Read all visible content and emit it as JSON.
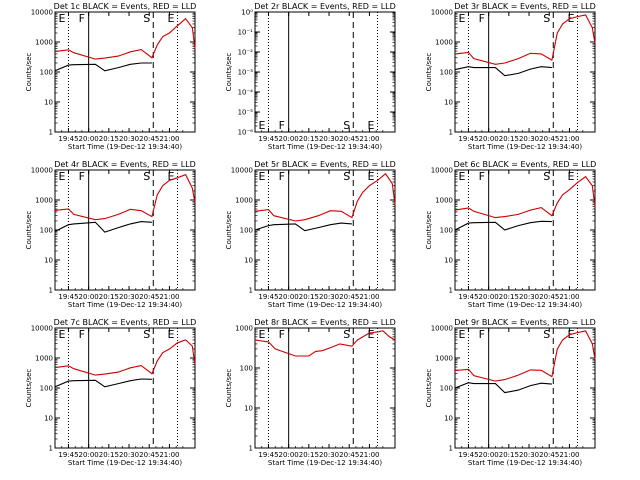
{
  "chart_data": [
    {
      "type": "line",
      "title": "Det 1c BLACK = Events, RED = LLD",
      "xlabel": "Start Time (19-Dec-12 19:34:40)",
      "ylabel": "Counts/sec",
      "yscale": "log",
      "ylim": [
        1,
        10000
      ],
      "ytick_labels": [
        "1",
        "10",
        "100",
        "1000",
        "10000"
      ],
      "xlim": [
        "19:35",
        "21:19"
      ],
      "xtick_labels": [
        "19:45",
        "20:00",
        "20:15",
        "20:30",
        "20:45",
        "21:00"
      ],
      "markers": [
        {
          "label": "E",
          "time": "19:45",
          "style": "dotted"
        },
        {
          "label": "F",
          "time": "20:00",
          "style": "solid"
        },
        {
          "label": "S",
          "time": "20:48",
          "style": "dashed"
        },
        {
          "label": "E",
          "time": "21:06",
          "style": "dotted"
        }
      ],
      "series": [
        {
          "color": "#000000",
          "x": [
            "19:35",
            "19:45",
            "19:49",
            "20:05",
            "20:12",
            "20:22",
            "20:31",
            "20:39",
            "20:47",
            "20:51",
            "20:55",
            "21:00"
          ],
          "y": [
            110,
            170,
            175,
            180,
            110,
            140,
            180,
            200,
            200,
            null,
            null,
            null
          ]
        },
        {
          "color": "#cc0000",
          "x": [
            "19:35",
            "19:45",
            "19:49",
            "20:05",
            "20:12",
            "20:22",
            "20:31",
            "20:39",
            "20:47",
            "20:51",
            "20:55",
            "21:00",
            "21:06",
            "21:12",
            "21:17",
            "21:19"
          ],
          "y": [
            480,
            550,
            440,
            270,
            290,
            340,
            470,
            560,
            300,
            800,
            1500,
            2000,
            3500,
            6000,
            3000,
            600
          ]
        }
      ]
    },
    {
      "type": "line",
      "title": "Det 2r BLACK = Events, RED = LLD",
      "xlabel": "Start Time (19-Dec-12 19:34:40)",
      "ylabel": "Counts/sec",
      "yscale": "log",
      "ylim": [
        1e-06,
        1
      ],
      "ytick_labels": [
        "10⁻⁶",
        "10⁻⁵",
        "10⁻⁴",
        "10⁻³",
        "10⁻²",
        "10⁻¹",
        "10⁰"
      ],
      "xlim": [
        "19:35",
        "21:19"
      ],
      "xtick_labels": [
        "19:45",
        "20:00",
        "20:15",
        "20:30",
        "20:45",
        "21:00"
      ],
      "markers": [
        {
          "label": "E",
          "time": "19:45",
          "style": "dotted"
        },
        {
          "label": "F",
          "time": "20:00",
          "style": "solid"
        },
        {
          "label": "S",
          "time": "20:48",
          "style": "dashed"
        },
        {
          "label": "E",
          "time": "21:06",
          "style": "dotted"
        }
      ],
      "series": []
    },
    {
      "type": "line",
      "title": "Det 3r BLACK = Events, RED = LLD",
      "xlabel": "Start Time (19-Dec-12 19:34:40)",
      "ylabel": "Counts/sec",
      "yscale": "log",
      "ylim": [
        1,
        10000
      ],
      "ytick_labels": [
        "1",
        "10",
        "100",
        "1000",
        "10000"
      ],
      "xlim": [
        "19:35",
        "21:19"
      ],
      "xtick_labels": [
        "19:45",
        "20:00",
        "20:15",
        "20:30",
        "20:45",
        "21:00"
      ],
      "markers": [
        {
          "label": "E",
          "time": "19:45",
          "style": "dotted"
        },
        {
          "label": "F",
          "time": "20:00",
          "style": "solid"
        },
        {
          "label": "S",
          "time": "20:48",
          "style": "dashed"
        },
        {
          "label": "E",
          "time": "21:06",
          "style": "dotted"
        }
      ],
      "series": [
        {
          "color": "#000000",
          "x": [
            "19:35",
            "19:45",
            "19:49",
            "20:05",
            "20:12",
            "20:22",
            "20:31",
            "20:39",
            "20:47",
            "20:51",
            "20:55",
            "21:00"
          ],
          "y": [
            120,
            150,
            140,
            140,
            75,
            90,
            125,
            150,
            140,
            null,
            null,
            null
          ]
        },
        {
          "color": "#cc0000",
          "x": [
            "19:35",
            "19:45",
            "19:49",
            "20:05",
            "20:12",
            "20:22",
            "20:31",
            "20:39",
            "20:47",
            "20:51",
            "20:55",
            "21:00",
            "21:06",
            "21:12",
            "21:17",
            "21:19"
          ],
          "y": [
            400,
            450,
            280,
            180,
            200,
            280,
            420,
            400,
            250,
            2000,
            4000,
            6000,
            7000,
            8000,
            3000,
            900
          ]
        }
      ]
    },
    {
      "type": "line",
      "title": "Det 4r BLACK = Events, RED = LLD",
      "xlabel": "Start Time (19-Dec-12 19:34:40)",
      "ylabel": "Counts/sec",
      "yscale": "log",
      "ylim": [
        1,
        10000
      ],
      "ytick_labels": [
        "1",
        "10",
        "100",
        "1000",
        "10000"
      ],
      "xlim": [
        "19:35",
        "21:19"
      ],
      "xtick_labels": [
        "19:45",
        "20:00",
        "20:15",
        "20:30",
        "20:45",
        "21:00"
      ],
      "markers": [
        {
          "label": "E",
          "time": "19:45",
          "style": "dotted"
        },
        {
          "label": "F",
          "time": "20:00",
          "style": "solid"
        },
        {
          "label": "S",
          "time": "20:48",
          "style": "dashed"
        },
        {
          "label": "E",
          "time": "21:06",
          "style": "dotted"
        }
      ],
      "series": [
        {
          "color": "#000000",
          "x": [
            "19:35",
            "19:45",
            "19:49",
            "20:05",
            "20:12",
            "20:22",
            "20:31",
            "20:39",
            "20:47",
            "20:51",
            "20:55",
            "21:00"
          ],
          "y": [
            90,
            150,
            160,
            180,
            85,
            120,
            160,
            190,
            180,
            null,
            null,
            null
          ]
        },
        {
          "color": "#cc0000",
          "x": [
            "19:35",
            "19:45",
            "19:49",
            "20:05",
            "20:12",
            "20:22",
            "20:31",
            "20:39",
            "20:47",
            "20:51",
            "20:55",
            "21:00",
            "21:06",
            "21:12",
            "21:17",
            "21:19"
          ],
          "y": [
            450,
            500,
            330,
            220,
            240,
            330,
            490,
            440,
            280,
            1500,
            3000,
            4500,
            5500,
            7000,
            2500,
            800
          ]
        }
      ]
    },
    {
      "type": "line",
      "title": "Det 5r BLACK = Events, RED = LLD",
      "xlabel": "Start Time (19-Dec-12 19:34:40)",
      "ylabel": "Counts/sec",
      "yscale": "log",
      "ylim": [
        1,
        10000
      ],
      "ytick_labels": [
        "1",
        "10",
        "100",
        "1000",
        "10000"
      ],
      "xlim": [
        "19:35",
        "21:19"
      ],
      "xtick_labels": [
        "19:45",
        "20:00",
        "20:15",
        "20:30",
        "20:45",
        "21:00"
      ],
      "markers": [
        {
          "label": "E",
          "time": "19:45",
          "style": "dotted"
        },
        {
          "label": "F",
          "time": "20:00",
          "style": "solid"
        },
        {
          "label": "S",
          "time": "20:48",
          "style": "dashed"
        },
        {
          "label": "E",
          "time": "21:06",
          "style": "dotted"
        }
      ],
      "series": [
        {
          "color": "#000000",
          "x": [
            "19:35",
            "19:45",
            "19:49",
            "20:05",
            "20:12",
            "20:22",
            "20:31",
            "20:39",
            "20:47",
            "20:51",
            "20:55",
            "21:00"
          ],
          "y": [
            100,
            140,
            150,
            160,
            95,
            120,
            150,
            170,
            160,
            null,
            null,
            null
          ]
        },
        {
          "color": "#cc0000",
          "x": [
            "19:35",
            "19:45",
            "19:49",
            "20:05",
            "20:12",
            "20:22",
            "20:31",
            "20:39",
            "20:47",
            "20:51",
            "20:55",
            "21:00",
            "21:06",
            "21:12",
            "21:17",
            "21:19"
          ],
          "y": [
            420,
            480,
            300,
            200,
            220,
            300,
            440,
            420,
            260,
            900,
            1800,
            3000,
            4500,
            7500,
            3500,
            700
          ]
        }
      ]
    },
    {
      "type": "line",
      "title": "Det 6c BLACK = Events, RED = LLD",
      "xlabel": "Start Time (19-Dec-12 19:34:40)",
      "ylabel": "Counts/sec",
      "yscale": "log",
      "ylim": [
        1,
        10000
      ],
      "ytick_labels": [
        "1",
        "10",
        "100",
        "1000",
        "10000"
      ],
      "xlim": [
        "19:35",
        "21:19"
      ],
      "xtick_labels": [
        "19:45",
        "20:00",
        "20:15",
        "20:30",
        "20:45",
        "21:00"
      ],
      "markers": [
        {
          "label": "E",
          "time": "19:45",
          "style": "dotted"
        },
        {
          "label": "F",
          "time": "20:00",
          "style": "solid"
        },
        {
          "label": "S",
          "time": "20:48",
          "style": "dashed"
        },
        {
          "label": "E",
          "time": "21:06",
          "style": "dotted"
        }
      ],
      "series": [
        {
          "color": "#000000",
          "x": [
            "19:35",
            "19:45",
            "19:49",
            "20:05",
            "20:12",
            "20:22",
            "20:31",
            "20:39",
            "20:47",
            "20:51",
            "20:55",
            "21:00"
          ],
          "y": [
            100,
            170,
            175,
            180,
            100,
            140,
            175,
            195,
            190,
            null,
            null,
            null
          ]
        },
        {
          "color": "#cc0000",
          "x": [
            "19:35",
            "19:45",
            "19:49",
            "20:05",
            "20:12",
            "20:22",
            "20:31",
            "20:39",
            "20:47",
            "20:51",
            "20:55",
            "21:00",
            "21:06",
            "21:12",
            "21:17",
            "21:19"
          ],
          "y": [
            460,
            540,
            420,
            260,
            280,
            330,
            460,
            560,
            300,
            800,
            1500,
            2200,
            3800,
            6000,
            3000,
            600
          ]
        }
      ]
    },
    {
      "type": "line",
      "title": "Det 7c BLACK = Events, RED = LLD",
      "xlabel": "Start Time (19-Dec-12 19:34:40)",
      "ylabel": "Counts/sec",
      "yscale": "log",
      "ylim": [
        1,
        10000
      ],
      "ytick_labels": [
        "1",
        "10",
        "100",
        "1000",
        "10000"
      ],
      "xlim": [
        "19:35",
        "21:19"
      ],
      "xtick_labels": [
        "19:45",
        "20:00",
        "20:15",
        "20:30",
        "20:45",
        "21:00"
      ],
      "markers": [
        {
          "label": "E",
          "time": "19:45",
          "style": "dotted"
        },
        {
          "label": "F",
          "time": "20:00",
          "style": "solid"
        },
        {
          "label": "S",
          "time": "20:48",
          "style": "dashed"
        },
        {
          "label": "E",
          "time": "21:06",
          "style": "dotted"
        }
      ],
      "series": [
        {
          "color": "#000000",
          "x": [
            "19:35",
            "19:45",
            "19:49",
            "20:05",
            "20:12",
            "20:22",
            "20:31",
            "20:39",
            "20:47",
            "20:51",
            "20:55",
            "21:00"
          ],
          "y": [
            110,
            170,
            175,
            180,
            110,
            140,
            175,
            200,
            195,
            null,
            null,
            null
          ]
        },
        {
          "color": "#cc0000",
          "x": [
            "19:35",
            "19:45",
            "19:49",
            "20:05",
            "20:12",
            "20:22",
            "20:31",
            "20:39",
            "20:47",
            "20:51",
            "20:55",
            "21:00",
            "21:06",
            "21:12",
            "21:17",
            "21:19"
          ],
          "y": [
            480,
            550,
            440,
            270,
            290,
            340,
            470,
            560,
            300,
            800,
            1500,
            2000,
            3200,
            4000,
            2500,
            600
          ]
        }
      ]
    },
    {
      "type": "line",
      "title": "Det 8r BLACK = Events, RED = LLD",
      "xlabel": "Start Time (19-Dec-12 19:34:40)",
      "ylabel": "Counts/sec",
      "yscale": "log",
      "ylim": [
        1,
        1000
      ],
      "ytick_labels": [
        "1",
        "10",
        "100",
        "1000"
      ],
      "xlim": [
        "19:35",
        "21:19"
      ],
      "xtick_labels": [
        "19:45",
        "20:00",
        "20:15",
        "20:30",
        "20:45",
        "21:00"
      ],
      "markers": [
        {
          "label": "E",
          "time": "19:45",
          "style": "dotted"
        },
        {
          "label": "F",
          "time": "20:00",
          "style": "solid"
        },
        {
          "label": "S",
          "time": "20:48",
          "style": "dashed"
        },
        {
          "label": "E",
          "time": "21:06",
          "style": "dotted"
        }
      ],
      "series": [
        {
          "color": "#cc0000",
          "x": [
            "19:35",
            "19:45",
            "19:50",
            "20:05",
            "20:15",
            "20:20",
            "20:25",
            "20:32",
            "20:38",
            "20:47",
            "20:51",
            "20:55",
            "21:00",
            "21:06",
            "21:10",
            "21:15",
            "21:19"
          ],
          "y": [
            500,
            450,
            300,
            200,
            200,
            260,
            270,
            330,
            400,
            350,
            500,
            600,
            750,
            800,
            850,
            600,
            500
          ]
        }
      ]
    },
    {
      "type": "line",
      "title": "Det 9r BLACK = Events, RED = LLD",
      "xlabel": "Start Time (19-Dec-12 19:34:40)",
      "ylabel": "Counts/sec",
      "yscale": "log",
      "ylim": [
        1,
        10000
      ],
      "ytick_labels": [
        "1",
        "10",
        "100",
        "1000",
        "10000"
      ],
      "xlim": [
        "19:35",
        "21:19"
      ],
      "xtick_labels": [
        "19:45",
        "20:00",
        "20:15",
        "20:30",
        "20:45",
        "21:00"
      ],
      "markers": [
        {
          "label": "E",
          "time": "19:45",
          "style": "dotted"
        },
        {
          "label": "F",
          "time": "20:00",
          "style": "solid"
        },
        {
          "label": "S",
          "time": "20:48",
          "style": "dashed"
        },
        {
          "label": "E",
          "time": "21:06",
          "style": "dotted"
        }
      ],
      "series": [
        {
          "color": "#000000",
          "x": [
            "19:35",
            "19:45",
            "19:49",
            "20:05",
            "20:12",
            "20:22",
            "20:31",
            "20:39",
            "20:47",
            "20:51",
            "20:55",
            "21:00"
          ],
          "y": [
            100,
            150,
            140,
            140,
            70,
            85,
            120,
            145,
            135,
            null,
            null,
            null
          ]
        },
        {
          "color": "#cc0000",
          "x": [
            "19:35",
            "19:45",
            "19:49",
            "20:05",
            "20:12",
            "20:22",
            "20:31",
            "20:39",
            "20:47",
            "20:51",
            "20:55",
            "21:00",
            "21:06",
            "21:12",
            "21:17",
            "21:19"
          ],
          "y": [
            380,
            420,
            260,
            170,
            190,
            270,
            400,
            390,
            240,
            2000,
            4000,
            6000,
            7000,
            8000,
            3000,
            900
          ]
        }
      ]
    }
  ]
}
